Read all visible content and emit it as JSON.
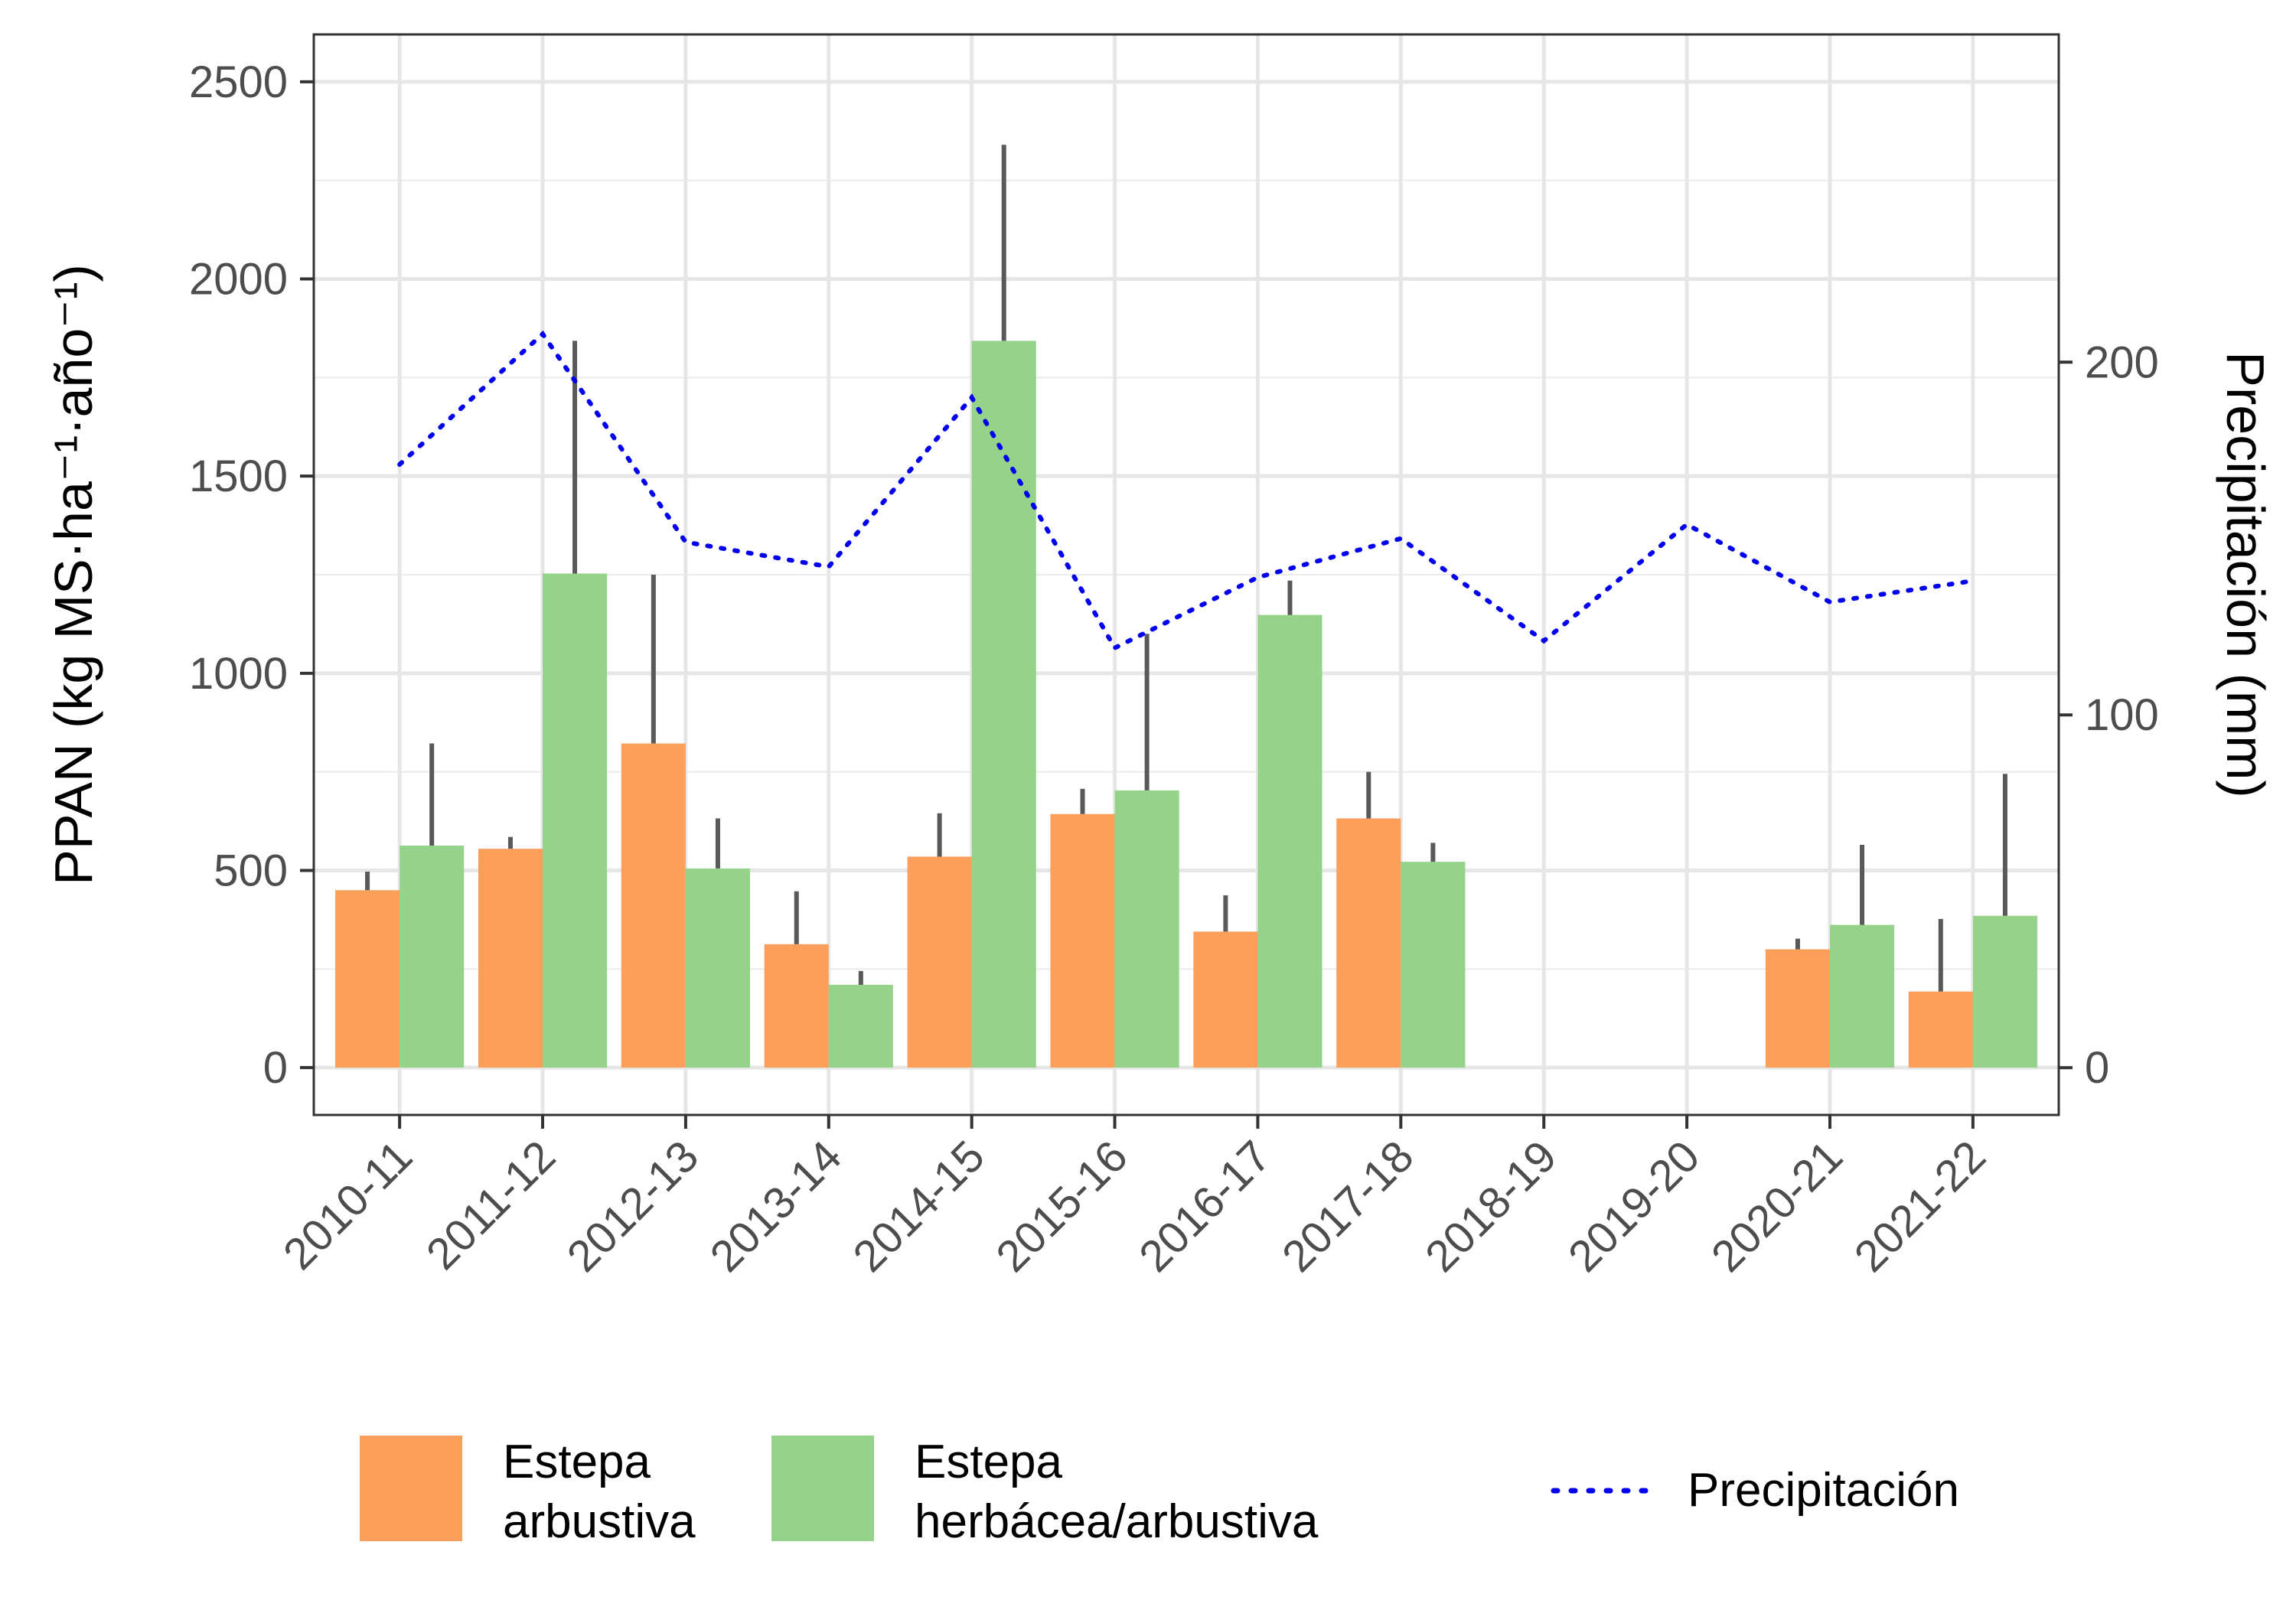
{
  "chart_data": {
    "type": "bar",
    "categories": [
      "2010-11",
      "2011-12",
      "2012-13",
      "2013-14",
      "2014-15",
      "2015-16",
      "2016-17",
      "2017-18",
      "2018-19",
      "2019-20",
      "2020-21",
      "2021-22"
    ],
    "ylabel_left": "PPAN (kg MS·ha⁻¹·año⁻¹)",
    "ylabel_right": "Precipitación (mm)",
    "ylim_left": [
      -120,
      2620
    ],
    "yticks_left": [
      0,
      500,
      1000,
      1500,
      2000,
      2500
    ],
    "ylim_right": [
      -13.4,
      292.9
    ],
    "yticks_right": [
      0,
      100,
      200
    ],
    "grid": true,
    "legend_position": "bottom",
    "series": [
      {
        "name": "Estepa arbustiva",
        "color": "#FC9F5B",
        "values": [
          450,
          555,
          822,
          313,
          535,
          643,
          345,
          632,
          null,
          null,
          300,
          193
        ],
        "error_upper": [
          497,
          585,
          1250,
          447,
          645,
          707,
          437,
          750,
          null,
          null,
          327,
          377
        ],
        "error_lower": [
          450,
          555,
          822,
          313,
          535,
          643,
          345,
          632,
          null,
          null,
          300,
          193
        ]
      },
      {
        "name": "Estepa herbácea/arbustiva",
        "color": "#95D38A",
        "values": [
          563,
          1253,
          505,
          210,
          1843,
          703,
          1148,
          522,
          null,
          null,
          362,
          385
        ],
        "error_upper": [
          822,
          1843,
          632,
          245,
          2340,
          1100,
          1235,
          570,
          null,
          null,
          565,
          745
        ],
        "error_lower": [
          563,
          1253,
          505,
          210,
          1843,
          703,
          1148,
          522,
          null,
          null,
          362,
          385
        ]
      }
    ],
    "line_series": {
      "name": "Precipitación",
      "color": "#0000EE",
      "style": "dotted",
      "axis": "right",
      "x": [
        "2010-11",
        "2011-12",
        "2012-13",
        "2013-14",
        "2014-15",
        "2015-16",
        "2016-17",
        "2017-18",
        "2018-19",
        "2019-20",
        "2020-21",
        "2021-22"
      ],
      "values": [
        171,
        208,
        149,
        142,
        190,
        119,
        139,
        150,
        121,
        154,
        132,
        138
      ]
    }
  },
  "legend": {
    "items": [
      {
        "line1": "Estepa",
        "line2": "arbustiva",
        "color": "#FC9F5B"
      },
      {
        "line1": "Estepa",
        "line2": "herbácea/arbustiva",
        "color": "#95D38A"
      }
    ],
    "line_label": "Precipitación",
    "line_color": "#0000EE"
  }
}
